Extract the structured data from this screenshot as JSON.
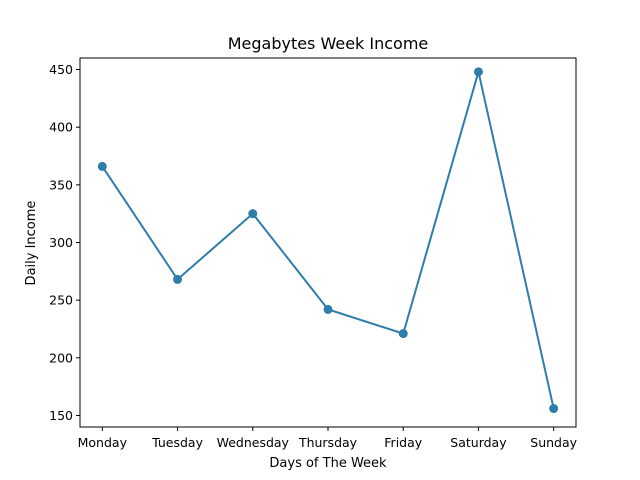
{
  "chart_data": {
    "type": "line",
    "title": "Megabytes Week Income",
    "xlabel": "Days of The Week",
    "ylabel": "Daily Income",
    "categories": [
      "Monday",
      "Tuesday",
      "Wednesday",
      "Thursday",
      "Friday",
      "Saturday",
      "Sunday"
    ],
    "series": [
      {
        "values": [
          366,
          268,
          325,
          242,
          221,
          448,
          156
        ],
        "color": "#2e7dab",
        "marker": "circle"
      }
    ],
    "ylim": [
      140,
      460
    ],
    "yticks": [
      150,
      200,
      250,
      300,
      350,
      400,
      450
    ],
    "grid": false,
    "legend": "none"
  }
}
